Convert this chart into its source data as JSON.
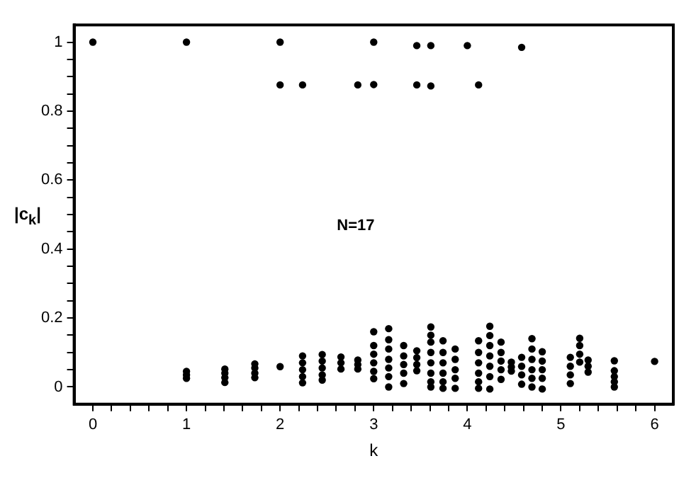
{
  "chart_data": {
    "type": "scatter",
    "xlabel": "k",
    "ylabel": "|c$_{k}$|",
    "annotations": [
      "N=17"
    ],
    "marker": "circle",
    "xlim": [
      -0.2,
      6.2
    ],
    "ylim": [
      -0.05,
      1.05
    ],
    "xticks": [
      0,
      {
        "value": 0.2,
        "label": null
      },
      {
        "value": 0.4,
        "label": null
      },
      {
        "value": 0.6,
        "label": null
      },
      {
        "value": 0.8,
        "label": null
      },
      1,
      {
        "value": 1.2,
        "label": null
      },
      {
        "value": 1.4,
        "label": null
      },
      {
        "value": 1.6,
        "label": null
      },
      {
        "value": 1.8,
        "label": null
      },
      2,
      {
        "value": 2.2,
        "label": null
      },
      {
        "value": 2.4,
        "label": null
      },
      {
        "value": 2.6,
        "label": null
      },
      {
        "value": 2.8,
        "label": null
      },
      3,
      {
        "value": 3.2,
        "label": null
      },
      {
        "value": 3.4,
        "label": null
      },
      {
        "value": 3.6,
        "label": null
      },
      {
        "value": 3.8,
        "label": null
      },
      4,
      {
        "value": 4.2,
        "label": null
      },
      {
        "value": 4.4,
        "label": null
      },
      {
        "value": 4.6,
        "label": null
      },
      {
        "value": 4.8,
        "label": null
      },
      5,
      {
        "value": 5.2,
        "label": null
      },
      {
        "value": 5.4,
        "label": null
      },
      {
        "value": 5.6,
        "label": null
      },
      {
        "value": 5.8,
        "label": null
      },
      6
    ],
    "yticks": [
      0,
      {
        "value": 0.05,
        "label": null
      },
      {
        "value": 0.1,
        "label": null
      },
      {
        "value": 0.15,
        "label": null
      },
      0.2,
      {
        "value": 0.25,
        "label": null
      },
      {
        "value": 0.3,
        "label": null
      },
      {
        "value": 0.35,
        "label": null
      },
      0.4,
      {
        "value": 0.45,
        "label": null
      },
      {
        "value": 0.5,
        "label": null
      },
      {
        "value": 0.55,
        "label": null
      },
      0.6,
      {
        "value": 0.65,
        "label": null
      },
      {
        "value": 0.7,
        "label": null
      },
      {
        "value": 0.75,
        "label": null
      },
      0.8,
      {
        "value": 0.85,
        "label": null
      },
      {
        "value": 0.9,
        "label": null
      },
      {
        "value": 0.95,
        "label": null
      },
      1
    ],
    "series": [
      {
        "color": "#000000",
        "x": [
          0,
          1,
          1,
          1,
          1,
          1.41,
          1.41,
          1.41,
          1.41,
          1.73,
          1.73,
          1.73,
          1.73,
          2,
          2,
          2,
          2.24,
          2.24,
          2.24,
          2.24,
          2.24,
          2.24,
          2.45,
          2.45,
          2.45,
          2.45,
          2.45,
          2.65,
          2.65,
          2.65,
          2.83,
          2.83,
          2.83,
          2.83,
          3,
          3,
          3,
          3,
          3,
          3,
          3,
          3,
          3.16,
          3.16,
          3.16,
          3.16,
          3.16,
          3.16,
          3.16,
          3.32,
          3.32,
          3.32,
          3.32,
          3.32,
          3.46,
          3.46,
          3.46,
          3.46,
          3.46,
          3.46,
          3.61,
          3.61,
          3.61,
          3.61,
          3.61,
          3.61,
          3.61,
          3.61,
          3.61,
          3.61,
          3.74,
          3.74,
          3.74,
          3.74,
          3.74,
          3.74,
          3.87,
          3.87,
          3.87,
          3.87,
          3.87,
          4,
          4.12,
          4.12,
          4.12,
          4.12,
          4.12,
          4.12,
          4.12,
          4.24,
          4.24,
          4.24,
          4.24,
          4.24,
          4.24,
          4.24,
          4.36,
          4.36,
          4.36,
          4.36,
          4.36,
          4.47,
          4.47,
          4.47,
          4.58,
          4.58,
          4.58,
          4.58,
          4.58,
          4.69,
          4.69,
          4.69,
          4.69,
          4.69,
          4.69,
          4.8,
          4.8,
          4.8,
          4.8,
          4.8,
          5.1,
          5.1,
          5.1,
          5.1,
          5.2,
          5.2,
          5.2,
          5.2,
          5.29,
          5.29,
          5.29,
          5.57,
          5.57,
          5.57,
          5.57,
          5.57,
          6
        ],
        "values": [
          1,
          1,
          0.045,
          0.035,
          0.025,
          0.052,
          0.04,
          0.027,
          0.013,
          0.067,
          0.055,
          0.04,
          0.027,
          1,
          0.876,
          0.059,
          0.876,
          0.09,
          0.07,
          0.05,
          0.03,
          0.012,
          0.094,
          0.075,
          0.055,
          0.035,
          0.02,
          0.087,
          0.07,
          0.052,
          0.876,
          0.078,
          0.065,
          0.052,
          1,
          0.877,
          0.16,
          0.12,
          0.095,
          0.07,
          0.045,
          0.024,
          0.169,
          0.137,
          0.11,
          0.08,
          0.055,
          0.03,
          0,
          0.12,
          0.09,
          0.065,
          0.04,
          0.01,
          0.99,
          0.876,
          0.105,
          0.085,
          0.065,
          0.047,
          0.99,
          0.873,
          0.174,
          0.15,
          0.13,
          0.1,
          0.07,
          0.04,
          0.015,
          0,
          0.134,
          0.1,
          0.07,
          0.04,
          0.015,
          -0.004,
          0.11,
          0.08,
          0.05,
          0.025,
          -0.004,
          0.99,
          0.876,
          0.134,
          0.1,
          0.07,
          0.04,
          0.015,
          -0.004,
          0.176,
          0.149,
          0.12,
          0.09,
          0.06,
          0.03,
          -0.006,
          0.13,
          0.1,
          0.075,
          0.05,
          0.022,
          0.072,
          0.058,
          0.046,
          0.985,
          0.086,
          0.06,
          0.035,
          0.008,
          0.14,
          0.11,
          0.08,
          0.05,
          0.025,
          0,
          0.102,
          0.075,
          0.05,
          0.025,
          -0.006,
          0.086,
          0.06,
          0.035,
          0.01,
          0.141,
          0.12,
          0.095,
          0.072,
          0.078,
          0.06,
          0.043,
          0.076,
          0.047,
          0.03,
          0.015,
          0,
          0.074
        ]
      }
    ]
  }
}
